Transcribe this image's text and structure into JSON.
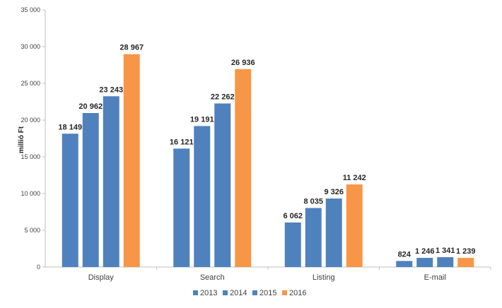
{
  "chart_data": {
    "type": "bar",
    "title": "",
    "xlabel": "",
    "ylabel": "millió Ft",
    "ylim": [
      0,
      35000
    ],
    "yticks": [
      0,
      5000,
      10000,
      15000,
      20000,
      25000,
      30000,
      35000
    ],
    "ytick_labels": [
      "0",
      "5 000",
      "10 000",
      "15 000",
      "20 000",
      "25 000",
      "30 000",
      "35 000"
    ],
    "grid": false,
    "legend_position": "bottom",
    "categories": [
      "Display",
      "Search",
      "Listing",
      "E-mail"
    ],
    "series": [
      {
        "name": "2013",
        "color": "#4f81bd",
        "values": [
          18149,
          16121,
          6062,
          824
        ],
        "labels": [
          "18 149",
          "16 121",
          "6 062",
          "824"
        ]
      },
      {
        "name": "2014",
        "color": "#4f81bd",
        "values": [
          20962,
          19191,
          8035,
          1246
        ],
        "labels": [
          "20 962",
          "19 191",
          "8 035",
          "1 246"
        ]
      },
      {
        "name": "2015",
        "color": "#4f81bd",
        "values": [
          23243,
          22262,
          9326,
          1341
        ],
        "labels": [
          "23 243",
          "22 262",
          "9 326",
          "1 341"
        ]
      },
      {
        "name": "2016",
        "color": "#f79646",
        "values": [
          28967,
          26936,
          11242,
          1239
        ],
        "labels": [
          "28 967",
          "26 936",
          "11 242",
          "1 239"
        ]
      }
    ]
  }
}
